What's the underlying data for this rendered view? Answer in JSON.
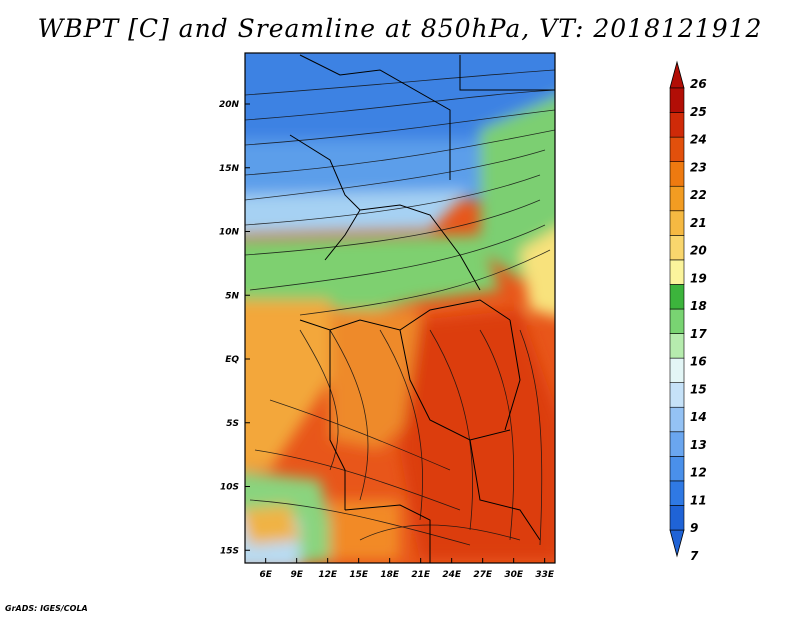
{
  "title": "WBPT [C] and Sreamline at 850hPa, VT: 2018121912",
  "credit": "GrADS: IGES/COLA",
  "map": {
    "lon_range": [
      4,
      34
    ],
    "lat_range": [
      -16,
      24
    ],
    "x_ticks": [
      {
        "label": "6E",
        "value": 6
      },
      {
        "label": "9E",
        "value": 9
      },
      {
        "label": "12E",
        "value": 12
      },
      {
        "label": "15E",
        "value": 15
      },
      {
        "label": "18E",
        "value": 18
      },
      {
        "label": "21E",
        "value": 21
      },
      {
        "label": "24E",
        "value": 24
      },
      {
        "label": "27E",
        "value": 27
      },
      {
        "label": "30E",
        "value": 30
      },
      {
        "label": "33E",
        "value": 33
      }
    ],
    "y_ticks": [
      {
        "label": "20N",
        "value": 20
      },
      {
        "label": "15N",
        "value": 15
      },
      {
        "label": "10N",
        "value": 10
      },
      {
        "label": "5N",
        "value": 5
      },
      {
        "label": "EQ",
        "value": 0
      },
      {
        "label": "5S",
        "value": -5
      },
      {
        "label": "10S",
        "value": -10
      },
      {
        "label": "15S",
        "value": -15
      }
    ]
  },
  "colorbar": {
    "labels": [
      "7",
      "9",
      "11",
      "12",
      "13",
      "14",
      "15",
      "16",
      "17",
      "18",
      "19",
      "20",
      "21",
      "22",
      "23",
      "24",
      "25",
      "26"
    ],
    "colors": [
      "#1f63d6",
      "#2f79e4",
      "#4a90ea",
      "#6aa6ef",
      "#94c2f4",
      "#c6e2f8",
      "#e3f6f6",
      "#b6ecae",
      "#79d472",
      "#3cb43c",
      "#fbf49c",
      "#f9d66d",
      "#f5b942",
      "#f29c22",
      "#ee7a10",
      "#e2500c",
      "#cf2a08",
      "#b20e06"
    ]
  }
}
